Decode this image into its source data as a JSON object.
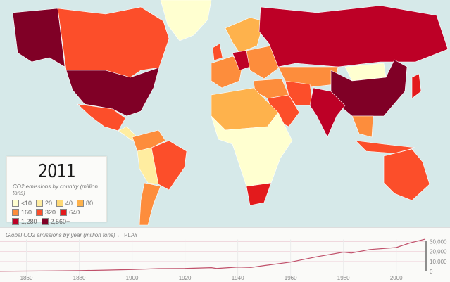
{
  "year": "2011",
  "legend": {
    "title": "CO2 emissions by country (million tons)",
    "items": [
      {
        "label": "≤10",
        "color": "#ffffd0"
      },
      {
        "label": "20",
        "color": "#ffeda0"
      },
      {
        "label": "40",
        "color": "#fed976"
      },
      {
        "label": "80",
        "color": "#feb24c"
      },
      {
        "label": "160",
        "color": "#fd8d3c"
      },
      {
        "label": "320",
        "color": "#fc4e2a"
      },
      {
        "label": "640",
        "color": "#e31a1c"
      },
      {
        "label": "1,280",
        "color": "#bd0026"
      },
      {
        "label": "2,560+",
        "color": "#800026"
      }
    ]
  },
  "timeline": {
    "title": "Global CO2 emissions by year (million tons)",
    "play_label": "← PLAY"
  },
  "chart_data": {
    "type": "line",
    "title": "Global CO2 emissions by year (million tons)",
    "xlim": [
      1850,
      2011
    ],
    "ylim": [
      0,
      30000
    ],
    "x_ticks": [
      "1860",
      "1880",
      "1900",
      "1920",
      "1940",
      "1960",
      "1980",
      "2000"
    ],
    "y_ticks": [
      "0",
      "10,000",
      "20,000",
      "30,000"
    ],
    "series": [
      {
        "name": "Global CO2 emissions",
        "color": "#c0506a",
        "x": [
          1850,
          1860,
          1870,
          1880,
          1890,
          1900,
          1910,
          1920,
          1930,
          1932,
          1940,
          1945,
          1950,
          1960,
          1970,
          1980,
          1983,
          1990,
          2000,
          2005,
          2008,
          2011
        ],
        "y": [
          200,
          350,
          550,
          850,
          1300,
          1950,
          2800,
          3000,
          3800,
          3000,
          4400,
          4000,
          5900,
          9400,
          14800,
          19400,
          18500,
          22000,
          24000,
          28500,
          30500,
          32500
        ]
      }
    ]
  }
}
